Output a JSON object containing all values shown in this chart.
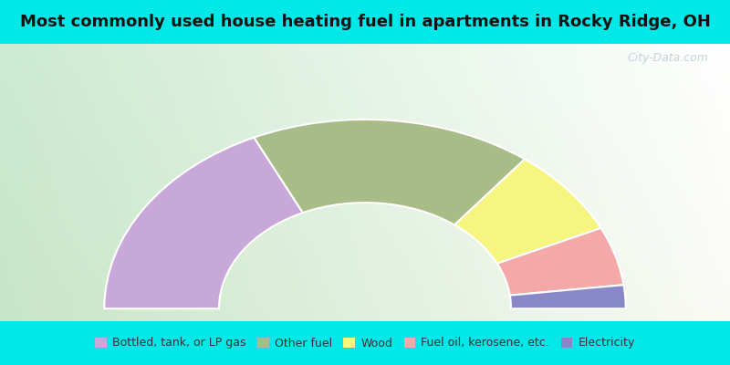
{
  "title": "Most commonly used house heating fuel in apartments in Rocky Ridge, OH",
  "title_fontsize": 13,
  "bg_color": "#00e8e8",
  "segments": [
    {
      "label": "Bottled, tank, or LP gas",
      "value": 36,
      "color": "#c8a8d8"
    },
    {
      "label": "Other fuel",
      "value": 35,
      "color": "#a8bc88"
    },
    {
      "label": "Wood",
      "value": 15,
      "color": "#f5f580"
    },
    {
      "label": "Fuel oil, kerosene, etc.",
      "value": 10,
      "color": "#f5a8a8"
    },
    {
      "label": "Electricity",
      "value": 4,
      "color": "#8888c8"
    }
  ],
  "donut_outer_r": 0.75,
  "donut_inner_r": 0.42,
  "watermark": "City-Data.com",
  "legend_fontsize": 9
}
